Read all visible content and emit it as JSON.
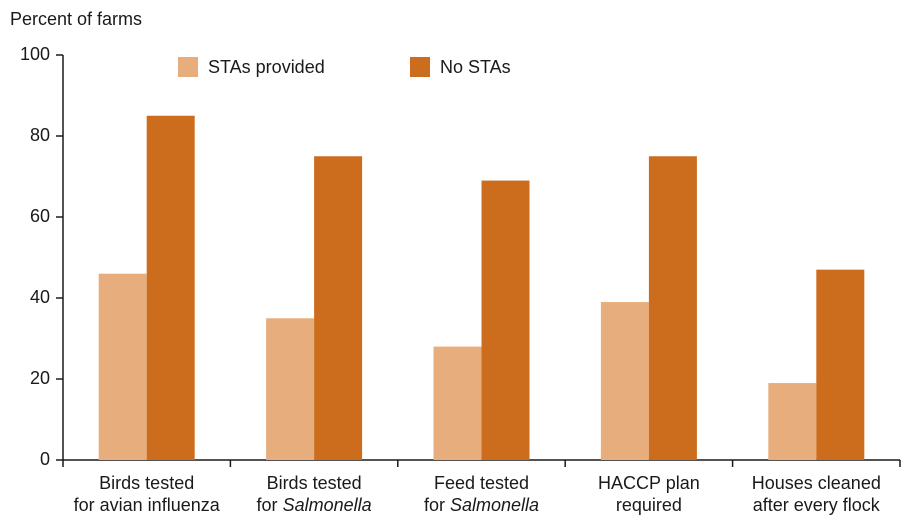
{
  "chart_data": {
    "type": "bar",
    "ylabel": "Percent of farms",
    "categories": [
      [
        [
          "Birds tested"
        ],
        [
          "for avian influenza"
        ]
      ],
      [
        [
          "Birds tested"
        ],
        [
          "for ",
          {
            "italic": "Salmonella"
          }
        ]
      ],
      [
        [
          "Feed tested"
        ],
        [
          "for ",
          {
            "italic": "Salmonella"
          }
        ]
      ],
      [
        [
          "HACCP plan"
        ],
        [
          "required"
        ]
      ],
      [
        [
          "Houses cleaned"
        ],
        [
          "after every flock"
        ]
      ]
    ],
    "series": [
      {
        "name": "STAs provided",
        "color": "#e8ad7c",
        "values": [
          46,
          35,
          28,
          39,
          19
        ]
      },
      {
        "name": "No STAs",
        "color": "#cc6d1e",
        "values": [
          85,
          75,
          69,
          75,
          47
        ]
      }
    ],
    "ylim": [
      0,
      100
    ],
    "yticks": [
      0,
      20,
      40,
      60,
      80,
      100
    ],
    "grid": false
  }
}
